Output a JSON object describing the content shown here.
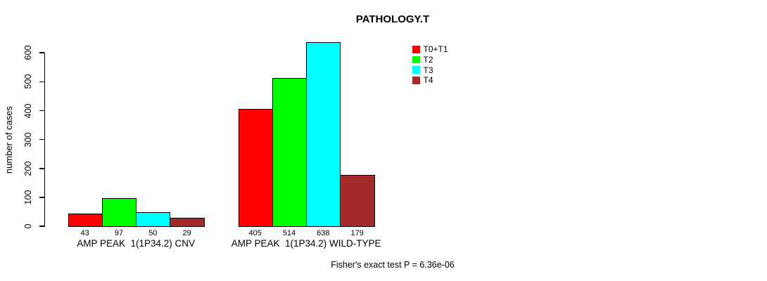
{
  "chart_data": {
    "type": "bar",
    "title": "PATHOLOGY.T",
    "ylabel": "number of cases",
    "ylim": [
      0,
      650
    ],
    "yticks": [
      0,
      100,
      200,
      300,
      400,
      500,
      600
    ],
    "grid": false,
    "legend_position": "top-right",
    "categories": [
      "AMP PEAK  1(1P34.2) CNV",
      "AMP PEAK  1(1P34.2) WILD-TYPE"
    ],
    "series": [
      {
        "name": "T0+T1",
        "color": "#ff0000",
        "values": [
          43,
          405
        ]
      },
      {
        "name": "T2",
        "color": "#00ff00",
        "values": [
          97,
          514
        ]
      },
      {
        "name": "T3",
        "color": "#00ffff",
        "values": [
          50,
          638
        ]
      },
      {
        "name": "T4",
        "color": "#a52a2a",
        "values": [
          29,
          179
        ]
      }
    ],
    "bar_value_labels": [
      [
        43,
        97,
        50,
        29
      ],
      [
        405,
        514,
        638,
        179
      ]
    ],
    "annotation": "Fisher's exact test P = 6.36e-06"
  }
}
